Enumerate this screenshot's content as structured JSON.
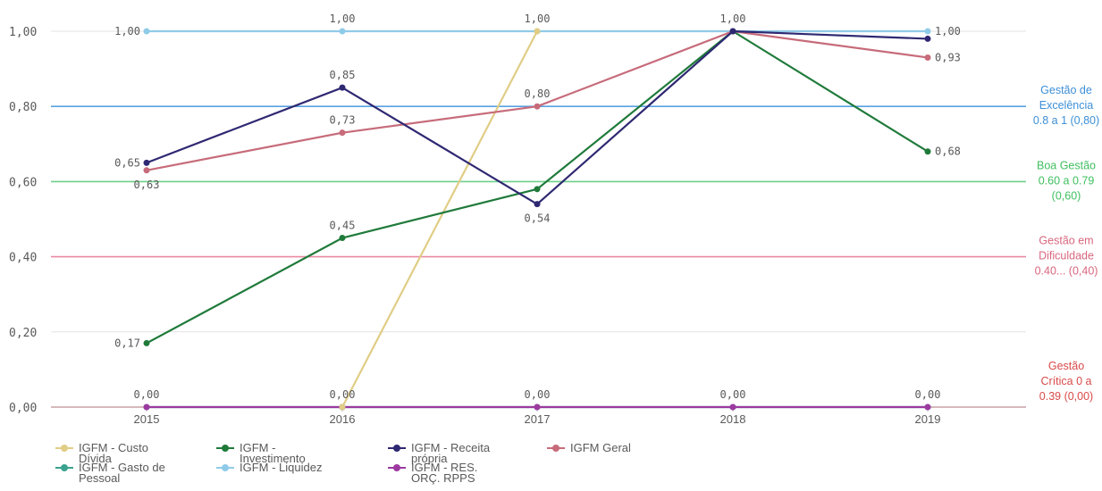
{
  "chart_data": {
    "type": "line",
    "categories": [
      "2015",
      "2016",
      "2017",
      "2018",
      "2019"
    ],
    "ylim": [
      0,
      1
    ],
    "yticks": [
      "0,00",
      "0,20",
      "0,40",
      "0,60",
      "0,80",
      "1,00"
    ],
    "grid": true,
    "legend_position": "bottom",
    "series": [
      {
        "name": "IGFM - Custo Dívida",
        "color": "#e0cd85",
        "values": [
          null,
          0.0,
          1.0,
          null,
          null
        ],
        "labels": [
          "",
          "0,00",
          "1,00",
          "",
          ""
        ]
      },
      {
        "name": "IGFM - Investimento",
        "color": "#1f7a3a",
        "values": [
          0.17,
          0.45,
          0.58,
          1.0,
          0.68
        ],
        "labels": [
          "0,17",
          "0,45",
          "",
          "",
          "0,68"
        ]
      },
      {
        "name": "IGFM - Receita própria",
        "color": "#2e2872",
        "values": [
          0.65,
          0.85,
          0.54,
          1.0,
          0.98
        ],
        "labels": [
          "0,65",
          "0,85",
          "0,54",
          "",
          ""
        ]
      },
      {
        "name": "IGFM Geral",
        "color": "#c76b7a",
        "values": [
          0.63,
          0.73,
          0.8,
          1.0,
          0.93
        ],
        "labels": [
          "0,63",
          "0,73",
          "0,80",
          "",
          "0,93"
        ]
      },
      {
        "name": "IGFM - Gasto de Pessoal",
        "color": "#3aa38f",
        "values": [
          0.0,
          0.0,
          0.0,
          0.0,
          0.0
        ],
        "labels": [
          "",
          "",
          "",
          "",
          ""
        ]
      },
      {
        "name": "IGFM - Liquidez",
        "color": "#8fcbe8",
        "values": [
          1.0,
          1.0,
          1.0,
          1.0,
          1.0
        ],
        "labels": [
          "1,00",
          "1,00",
          "",
          "1,00",
          "1,00"
        ]
      },
      {
        "name": "IGFM - RES. ORÇ. RPPS",
        "color": "#9c3aa0",
        "values": [
          0.0,
          0.0,
          0.0,
          0.0,
          0.0
        ],
        "labels": [
          "0,00",
          "",
          "0,00",
          "0,00",
          "0,00"
        ]
      }
    ],
    "reference_lines": [
      {
        "value": 0.8,
        "color": "#5aa0e0",
        "text_color": "#3d8fd6",
        "label": [
          "Gestão de",
          "Excelência",
          "0.8 a 1 (0,80)"
        ]
      },
      {
        "value": 0.6,
        "color": "#6fd08a",
        "text_color": "#3fbf5f",
        "label": [
          "Boa Gestão",
          "0.60 a 0.79",
          "(0,60)"
        ]
      },
      {
        "value": 0.4,
        "color": "#e98aa4",
        "text_color": "#d9667e",
        "label": [
          "Gestão em",
          "Dificuldade",
          "0.40... (0,40)"
        ]
      },
      {
        "value": 0.0,
        "color": "#e0666e",
        "text_color": "#d94a4a",
        "label": [
          "Gestão",
          "Crítica 0 a",
          "0.39 (0,00)"
        ]
      }
    ]
  }
}
